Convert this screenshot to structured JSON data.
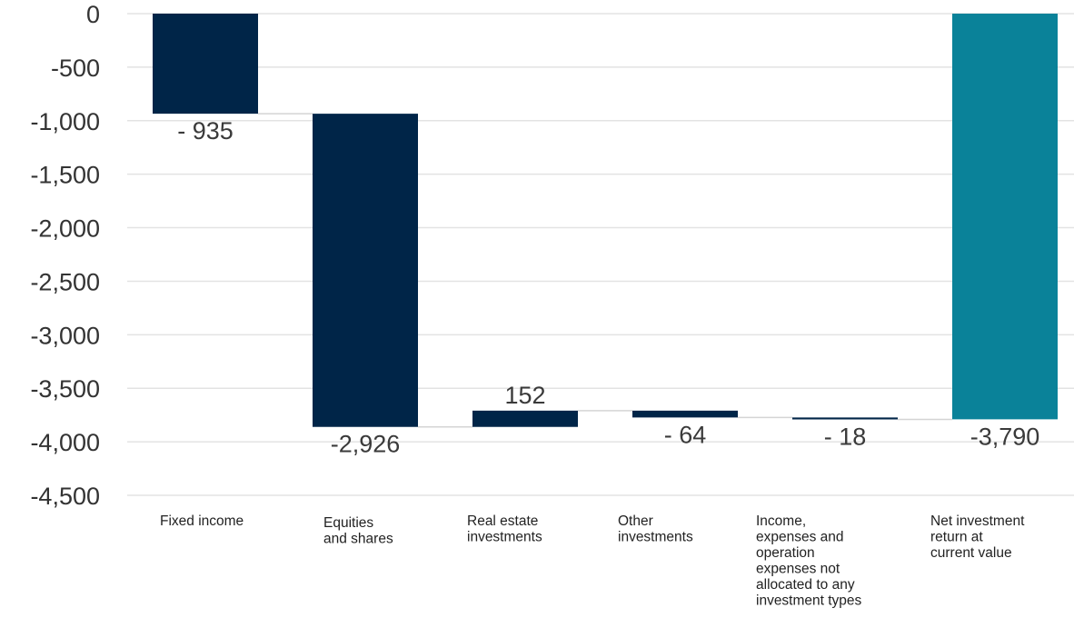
{
  "chart_data": {
    "type": "bar",
    "subtype": "waterfall",
    "title": "",
    "xlabel": "",
    "ylabel": "",
    "ylim": [
      -4500,
      0
    ],
    "yticks": [
      0,
      -500,
      -1000,
      -1500,
      -2000,
      -2500,
      -3000,
      -3500,
      -4000,
      -4500
    ],
    "ytick_labels": [
      "0",
      "-500",
      "-1,000",
      "-1,500",
      "-2,000",
      "-2,500",
      "-3,000",
      "-3,500",
      "-4,000",
      "-4,500"
    ],
    "grid": true,
    "legend": "none",
    "categories": [
      [
        "Fixed income"
      ],
      [
        "Equities",
        "and shares"
      ],
      [
        "Real estate",
        "investments"
      ],
      [
        "Other",
        "investments"
      ],
      [
        "Income,",
        "expenses  and",
        "operation",
        "expenses  not",
        "allocated to any",
        "investment  types"
      ],
      [
        "Net investment",
        "return at",
        "current value"
      ]
    ],
    "values": [
      -935,
      -2926,
      152,
      -64,
      -18,
      -3790
    ],
    "bar_kinds": [
      "delta",
      "delta",
      "delta",
      "delta",
      "delta",
      "total"
    ],
    "data_labels": [
      "- 935",
      "-2,926",
      "152",
      "- 64",
      "- 18",
      "-3,790"
    ],
    "colors": {
      "delta": "#002548",
      "total": "#0a8299"
    }
  }
}
